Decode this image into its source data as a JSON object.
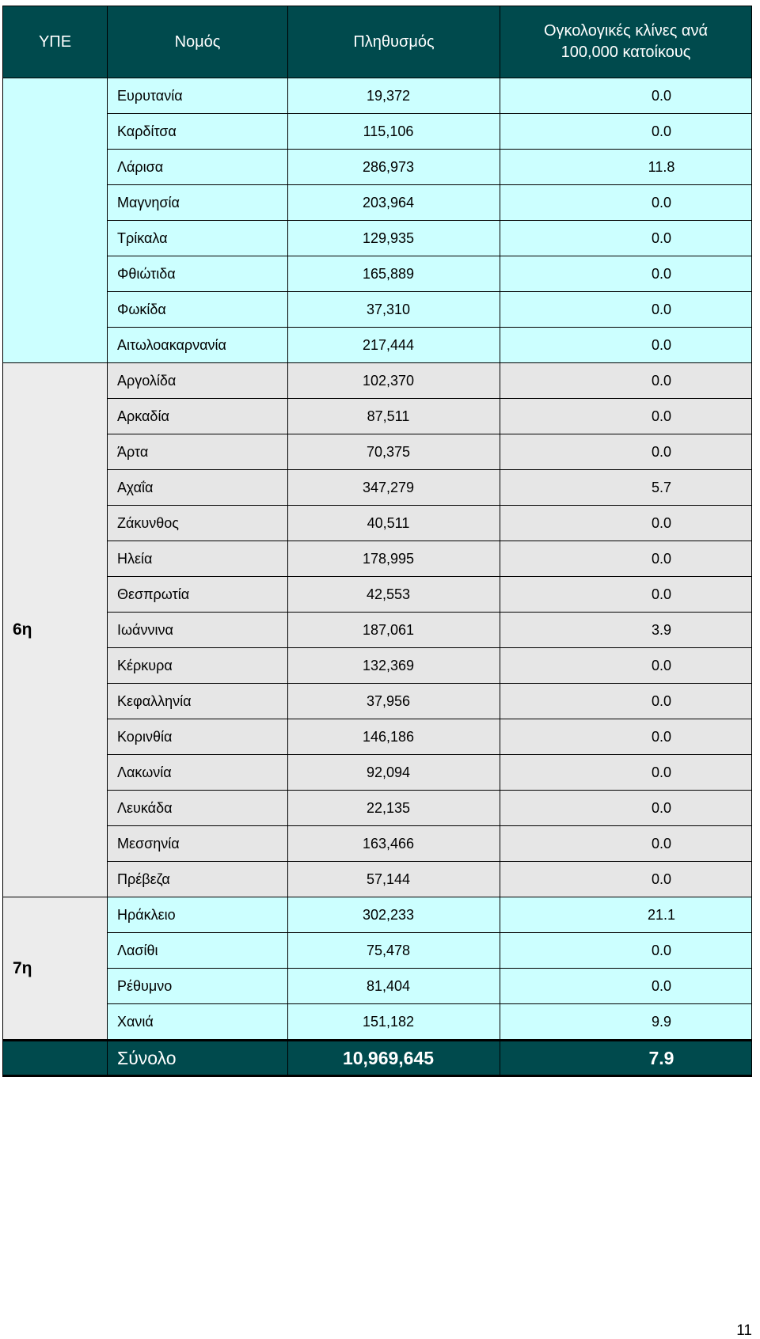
{
  "headers": {
    "upe": "ΥΠΕ",
    "nomos": "Νομός",
    "population": "Πληθυσμός",
    "beds_line1": "Ογκολογικές κλίνες ανά",
    "beds_line2": "100,000 κατοίκους"
  },
  "groups": [
    {
      "label": "",
      "style": "cyan",
      "rows": [
        {
          "name": "Ευρυτανία",
          "population": "19,372",
          "beds": "0.0"
        },
        {
          "name": "Καρδίτσα",
          "population": "115,106",
          "beds": "0.0"
        },
        {
          "name": "Λάρισα",
          "population": "286,973",
          "beds": "11.8"
        },
        {
          "name": "Μαγνησία",
          "population": "203,964",
          "beds": "0.0"
        },
        {
          "name": "Τρίκαλα",
          "population": "129,935",
          "beds": "0.0"
        },
        {
          "name": "Φθιώτιδα",
          "population": "165,889",
          "beds": "0.0"
        },
        {
          "name": "Φωκίδα",
          "population": "37,310",
          "beds": "0.0"
        },
        {
          "name": "Αιτωλοακαρνανία",
          "population": "217,444",
          "beds": "0.0"
        }
      ]
    },
    {
      "label": "6η",
      "style": "gray",
      "rows": [
        {
          "name": "Αργολίδα",
          "population": "102,370",
          "beds": "0.0"
        },
        {
          "name": "Αρκαδία",
          "population": "87,511",
          "beds": "0.0"
        },
        {
          "name": "Άρτα",
          "population": "70,375",
          "beds": "0.0"
        },
        {
          "name": "Αχαΐα",
          "population": "347,279",
          "beds": "5.7"
        },
        {
          "name": "Ζάκυνθος",
          "population": "40,511",
          "beds": "0.0"
        },
        {
          "name": "Ηλεία",
          "population": "178,995",
          "beds": "0.0"
        },
        {
          "name": "Θεσπρωτία",
          "population": "42,553",
          "beds": "0.0"
        },
        {
          "name": "Ιωάννινα",
          "population": "187,061",
          "beds": "3.9"
        },
        {
          "name": "Κέρκυρα",
          "population": "132,369",
          "beds": "0.0"
        },
        {
          "name": "Κεφαλληνία",
          "population": "37,956",
          "beds": "0.0"
        },
        {
          "name": "Κορινθία",
          "population": "146,186",
          "beds": "0.0"
        },
        {
          "name": "Λακωνία",
          "population": "92,094",
          "beds": "0.0"
        },
        {
          "name": "Λευκάδα",
          "population": "22,135",
          "beds": "0.0"
        },
        {
          "name": "Μεσσηνία",
          "population": "163,466",
          "beds": "0.0"
        },
        {
          "name": "Πρέβεζα",
          "population": "57,144",
          "beds": "0.0"
        }
      ]
    },
    {
      "label": "7η",
      "style": "cyan",
      "rows": [
        {
          "name": "Ηράκλειο",
          "population": "302,233",
          "beds": "21.1"
        },
        {
          "name": "Λασίθι",
          "population": "75,478",
          "beds": "0.0"
        },
        {
          "name": "Ρέθυμνο",
          "population": "81,404",
          "beds": "0.0"
        },
        {
          "name": "Χανιά",
          "population": "151,182",
          "beds": "9.9"
        }
      ]
    }
  ],
  "total": {
    "label": "Σύνολο",
    "population": "10,969,645",
    "beds": "7.9"
  },
  "page_number": "11"
}
